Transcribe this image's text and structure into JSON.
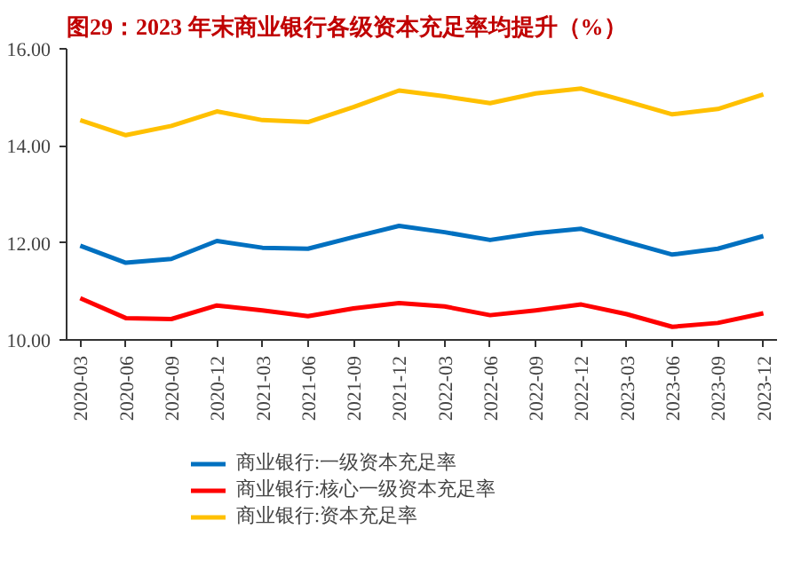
{
  "chart_data": {
    "type": "line",
    "title": "图29：2023 年末商业银行各级资本充足率均提升（%）",
    "categories": [
      "2020-03",
      "2020-06",
      "2020-09",
      "2020-12",
      "2021-03",
      "2021-06",
      "2021-09",
      "2021-12",
      "2022-03",
      "2022-06",
      "2022-09",
      "2022-12",
      "2023-03",
      "2023-06",
      "2023-09",
      "2023-12"
    ],
    "series": [
      {
        "name": "商业银行:一级资本充足率",
        "color": "#0070c0",
        "values": [
          11.94,
          11.59,
          11.67,
          12.04,
          11.9,
          11.88,
          12.12,
          12.35,
          12.22,
          12.06,
          12.2,
          12.29,
          12.02,
          11.76,
          11.88,
          12.14
        ]
      },
      {
        "name": "商业银行:核心一级资本充足率",
        "color": "#ff0000",
        "values": [
          10.86,
          10.45,
          10.43,
          10.71,
          10.61,
          10.49,
          10.65,
          10.76,
          10.69,
          10.51,
          10.61,
          10.73,
          10.53,
          10.27,
          10.35,
          10.55
        ]
      },
      {
        "name": "商业银行:资本充足率",
        "color": "#ffc000",
        "values": [
          14.53,
          14.22,
          14.41,
          14.71,
          14.53,
          14.49,
          14.8,
          15.14,
          15.02,
          14.88,
          15.08,
          15.18,
          14.92,
          14.65,
          14.76,
          15.06
        ]
      }
    ],
    "ylim": [
      10,
      16
    ],
    "yticks": [
      {
        "value": 10,
        "label": "10.00"
      },
      {
        "value": 12,
        "label": "12.00"
      },
      {
        "value": 14,
        "label": "14.00"
      },
      {
        "value": 16,
        "label": "16.00"
      }
    ],
    "grid": false,
    "legend": "bottom",
    "marker": "none",
    "line_style": "solid"
  }
}
